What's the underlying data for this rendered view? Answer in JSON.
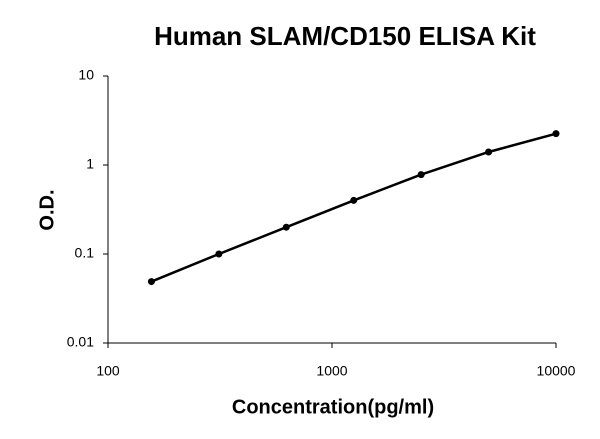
{
  "chart_data": {
    "type": "line",
    "title": "Human SLAM/CD150 ELISA Kit",
    "x_label": "Concentration(pg/ml)",
    "y_label": "O.D.",
    "x": [
      156.25,
      312.5,
      625,
      1250,
      2500,
      5000,
      10000
    ],
    "series": [
      {
        "color": "#000000",
        "values": [
          0.049,
          0.1,
          0.2,
          0.4,
          0.78,
          1.4,
          2.25
        ]
      }
    ],
    "xlim": [
      100,
      10000
    ],
    "ylim": [
      0.01,
      10
    ],
    "xticks": [
      100,
      1000,
      10000
    ],
    "yticks": [
      0.01,
      0.1,
      1,
      10
    ],
    "log_x": true,
    "log_y": true,
    "grid": false
  }
}
